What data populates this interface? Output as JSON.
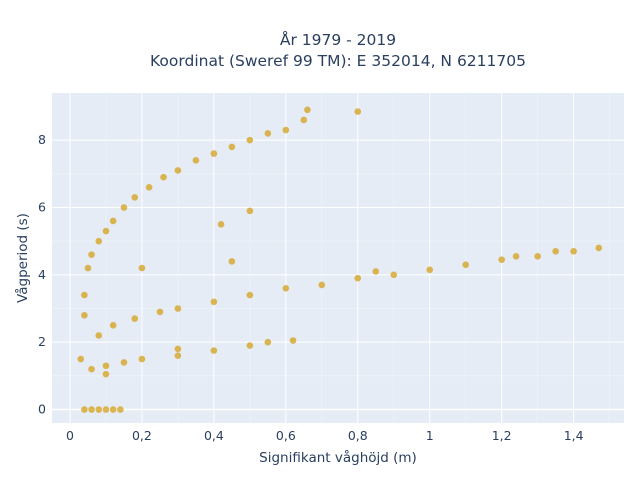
{
  "chart_data": {
    "type": "scatter",
    "title_line1": "År 1979 - 2019",
    "title_line2": "Koordinat (Sweref 99 TM): E 352014, N 6211705",
    "xlabel": "Signifikant våghöjd (m)",
    "ylabel": "Vågperiod (s)",
    "xlim": [
      -0.05,
      1.54
    ],
    "ylim": [
      -0.4,
      9.4
    ],
    "x_ticks": [
      0,
      0.2,
      0.4,
      0.6,
      0.8,
      1.0,
      1.2,
      1.4
    ],
    "x_tick_labels": [
      "0",
      "0,2",
      "0,4",
      "0,6",
      "0,8",
      "1",
      "1,2",
      "1,4"
    ],
    "y_ticks": [
      0,
      2,
      4,
      6,
      8
    ],
    "y_tick_labels": [
      "0",
      "2",
      "4",
      "6",
      "8"
    ],
    "grid": true,
    "marker_color": "#d4a017",
    "plot_background": "#e5ecf6",
    "series": [
      {
        "values_description_points": [
          [
            0.04,
            0.0
          ],
          [
            0.06,
            0.0
          ],
          [
            0.08,
            0.0
          ],
          [
            0.1,
            0.0
          ],
          [
            0.12,
            0.0
          ],
          [
            0.14,
            0.0
          ],
          [
            0.03,
            1.5
          ],
          [
            0.04,
            2.8
          ],
          [
            0.04,
            3.4
          ],
          [
            0.05,
            4.2
          ],
          [
            0.06,
            4.6
          ],
          [
            0.08,
            5.0
          ],
          [
            0.1,
            5.3
          ],
          [
            0.12,
            5.6
          ],
          [
            0.15,
            6.0
          ],
          [
            0.18,
            6.3
          ],
          [
            0.22,
            6.6
          ],
          [
            0.26,
            6.9
          ],
          [
            0.3,
            7.1
          ],
          [
            0.35,
            7.4
          ],
          [
            0.4,
            7.6
          ],
          [
            0.45,
            7.8
          ],
          [
            0.5,
            8.0
          ],
          [
            0.55,
            8.2
          ],
          [
            0.6,
            8.3
          ],
          [
            0.65,
            8.6
          ],
          [
            0.66,
            8.9
          ],
          [
            0.8,
            8.85
          ],
          [
            0.08,
            2.2
          ],
          [
            0.12,
            2.5
          ],
          [
            0.18,
            2.7
          ],
          [
            0.25,
            2.9
          ],
          [
            0.3,
            3.0
          ],
          [
            0.4,
            3.2
          ],
          [
            0.5,
            3.4
          ],
          [
            0.6,
            3.6
          ],
          [
            0.7,
            3.7
          ],
          [
            0.8,
            3.9
          ],
          [
            0.9,
            4.0
          ],
          [
            1.0,
            4.15
          ],
          [
            1.1,
            4.3
          ],
          [
            1.2,
            4.45
          ],
          [
            1.3,
            4.55
          ],
          [
            1.4,
            4.7
          ],
          [
            1.47,
            4.8
          ],
          [
            0.06,
            1.2
          ],
          [
            0.1,
            1.3
          ],
          [
            0.15,
            1.4
          ],
          [
            0.2,
            1.5
          ],
          [
            0.3,
            1.6
          ],
          [
            0.4,
            1.75
          ],
          [
            0.5,
            1.9
          ],
          [
            0.55,
            2.0
          ],
          [
            0.62,
            2.05
          ],
          [
            0.85,
            4.1
          ],
          [
            1.24,
            4.55
          ],
          [
            1.35,
            4.7
          ],
          [
            0.1,
            1.05
          ],
          [
            0.3,
            1.8
          ],
          [
            0.45,
            4.4
          ],
          [
            0.2,
            4.2
          ],
          [
            0.5,
            5.9
          ],
          [
            0.42,
            5.5
          ]
        ]
      }
    ]
  }
}
